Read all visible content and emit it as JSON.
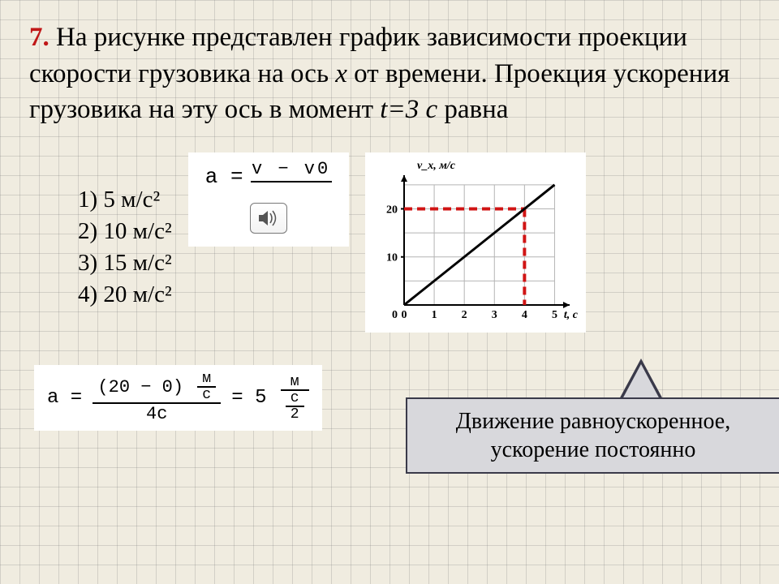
{
  "question": {
    "number": "7.",
    "text_part1": " На рисунке представлен график зависимости проекции скорости грузовика на ось ",
    "axis": "x",
    "text_part2": " от времени. Проекция ускорения грузовика на эту ось в момент ",
    "moment": "t=3 с",
    "text_part3": " равна"
  },
  "answers": {
    "a1": "1) 5 м/с²",
    "a2": "2) 10 м/с²",
    "a3": "3) 15 м/с²",
    "a4": "4) 20 м/с²"
  },
  "formula1": {
    "lhs": "a =",
    "numerator": "v − v0"
  },
  "chart": {
    "type": "line",
    "ylabel": "v_x, м/с",
    "xlabel": "t, с",
    "xlim": [
      0,
      5.5
    ],
    "ylim": [
      0,
      27
    ],
    "xticks": [
      0,
      1,
      2,
      3,
      4,
      5
    ],
    "yticks": [
      0,
      10,
      20
    ],
    "line_start": [
      0,
      0
    ],
    "line_end": [
      5,
      25
    ],
    "line_color": "#000000",
    "line_width": 3,
    "marker_point": [
      4,
      20
    ],
    "marker_lines_color": "#d01414",
    "marker_dash": "10,6",
    "marker_width": 4,
    "grid_color": "#b4b4b4",
    "background_color": "#ffffff",
    "tick_fontsize": 14,
    "label_fontsize": 14
  },
  "formula2": {
    "lhs": "a =",
    "num_main": "(20 − 0)",
    "num_unit_n": "м",
    "num_unit_d": "с",
    "den_main": "4с",
    "rhs_val": "5",
    "rhs_unit_n": "м",
    "rhs_unit_d1": "с",
    "rhs_unit_d2": "2"
  },
  "callout": {
    "line1": "Движение равноускоренное,",
    "line2": "ускорение постоянно"
  }
}
